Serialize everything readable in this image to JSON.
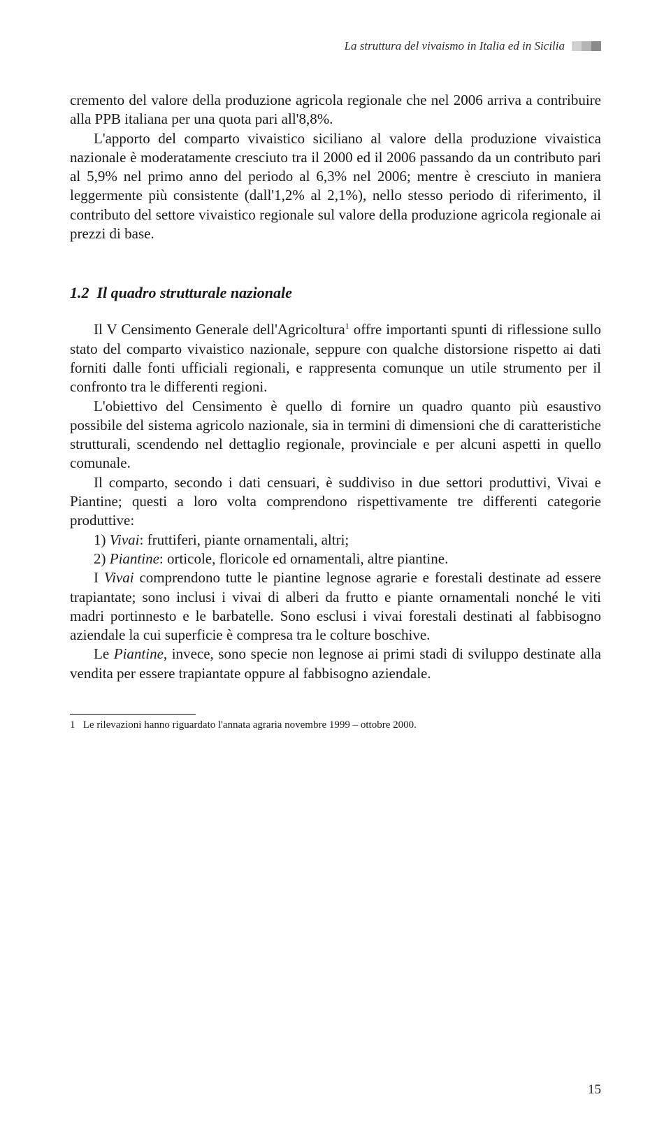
{
  "header": {
    "running_title": "La struttura del vivaismo in Italia ed in Sicilia",
    "block_colors": [
      "#d0d0d0",
      "#b4b4b4",
      "#8a8a8a"
    ]
  },
  "body": {
    "lead_para": "cremento del valore della produzione agricola regionale che nel 2006 arriva a contribuire alla PPB italiana per una quota pari all'8,8%.",
    "para2": "L'apporto del comparto vivaistico siciliano al valore della produzione vivaistica nazionale è moderatamente cresciuto tra il 2000 ed il 2006 passando da un contributo pari al 5,9% nel primo anno del periodo al 6,3% nel 2006; mentre è cresciuto in maniera leggermente più consistente (dall'1,2% al 2,1%), nello stesso periodo di riferimento, il contributo del settore vivaistico regionale sul valore della produzione agricola regionale ai prezzi di base.",
    "section_number": "1.2",
    "section_title": "Il quadro strutturale nazionale",
    "p3_a": "Il V Censimento Generale dell'Agricoltura",
    "p3_sup": "1",
    "p3_b": " offre importanti spunti di riflessione sullo stato del comparto vivaistico nazionale, seppure con qualche distorsione rispetto ai dati forniti dalle fonti ufficiali regionali, e rappresenta comunque un utile strumento per il confronto tra le differenti regioni.",
    "p4": "L'obiettivo del Censimento è quello di fornire un quadro quanto più esaustivo possibile del sistema agricolo nazionale, sia in termini di dimensioni che di caratteristiche strutturali, scendendo nel dettaglio regionale, provinciale e per alcuni aspetti in quello comunale.",
    "p5": "Il comparto, secondo i dati censuari, è suddiviso in due settori produttivi, Vivai e Piantine; questi a loro volta comprendono rispettivamente tre differenti categorie produttive:",
    "li1_num": "1) ",
    "li1_term": "Vivai",
    "li1_rest": ": fruttiferi, piante ornamentali, altri;",
    "li2_num": "2) ",
    "li2_term": "Piantine",
    "li2_rest": ": orticole, floricole ed ornamentali, altre piantine.",
    "p6_a": "I ",
    "p6_term": "Vivai",
    "p6_b": " comprendono tutte le piantine legnose agrarie e forestali destinate ad essere trapiantate; sono inclusi i vivai di alberi da frutto e piante ornamentali nonché le viti madri portinnesto e le barbatelle. Sono esclusi i vivai forestali destinati al fabbisogno aziendale la cui superficie è compresa tra le colture boschive.",
    "p7_a": "Le ",
    "p7_term": "Piantine",
    "p7_b": ", invece, sono specie non legnose ai primi stadi di sviluppo destinate alla vendita per essere trapiantate oppure al fabbisogno aziendale."
  },
  "footnote": {
    "marker": "1",
    "text": "Le rilevazioni hanno riguardato l'annata agraria novembre 1999 – ottobre 2000."
  },
  "page_number": "15"
}
